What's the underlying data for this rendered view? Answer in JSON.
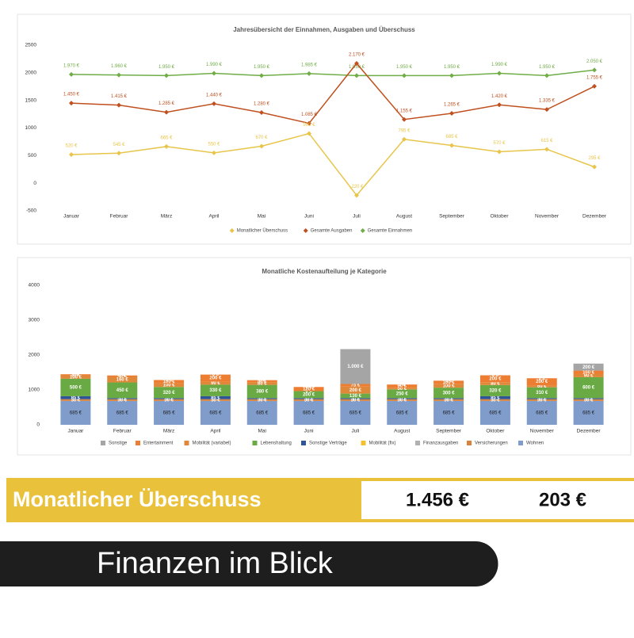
{
  "chart_data": [
    {
      "type": "line",
      "title": "Jahresübersicht der Einnahmen, Ausgaben und Überschuss",
      "categories": [
        "Januar",
        "Februar",
        "März",
        "April",
        "Mai",
        "Juni",
        "Juli",
        "August",
        "September",
        "Oktober",
        "November",
        "Dezember"
      ],
      "ylim": [
        -500,
        2500
      ],
      "yticks": [
        -500,
        0,
        500,
        1000,
        1500,
        2000,
        2500
      ],
      "legend": "bottom",
      "series": [
        {
          "name": "Gesamte Einnahmen",
          "color": "#70ad47",
          "values": [
            1970,
            1960,
            1950,
            1990,
            1950,
            1985,
            1950,
            1950,
            1950,
            1990,
            1950,
            2050
          ],
          "value_labels": [
            "1.970 €",
            "1.960 €",
            "1.950 €",
            "1.990 €",
            "1.950 €",
            "1.985 €",
            "1.950 €",
            "1.950 €",
            "1.950 €",
            "1.990 €",
            "1.950 €",
            "2.050 €"
          ]
        },
        {
          "name": "Gesamte Ausgaben",
          "color": "#c0501f",
          "values": [
            1450,
            1415,
            1285,
            1440,
            1280,
            1085,
            2170,
            1155,
            1265,
            1420,
            1335,
            1755
          ],
          "value_labels": [
            "1.450 €",
            "1.415 €",
            "1.285 €",
            "1.440 €",
            "1.280 €",
            "1.085 €",
            "2.170 €",
            "1.155 €",
            "1.265 €",
            "1.420 €",
            "1.335 €",
            "1.755 €"
          ]
        },
        {
          "name": "Monatlicher Überschuss",
          "color": "#e8c54a",
          "values": [
            520,
            545,
            665,
            550,
            670,
            900,
            -220,
            795,
            685,
            570,
            615,
            295
          ],
          "value_labels": [
            "520 €",
            "545 €",
            "665 €",
            "550 €",
            "670 €",
            "900 €",
            "-220 €",
            "795 €",
            "685 €",
            "570 €",
            "615 €",
            "295 €"
          ]
        }
      ]
    },
    {
      "type": "stacked-bar",
      "title": "Monatliche Kostenaufteilung je Kategorie",
      "categories": [
        "Januar",
        "Februar",
        "März",
        "April",
        "Mai",
        "Juni",
        "Juli",
        "August",
        "September",
        "Oktober",
        "November",
        "Dezember"
      ],
      "ylim": [
        0,
        4000
      ],
      "yticks": [
        0,
        1000,
        2000,
        3000,
        4000
      ],
      "legend": "bottom",
      "series": [
        {
          "name": "Wohnen",
          "color": "#7f9ccb",
          "values": [
            685,
            685,
            685,
            685,
            685,
            685,
            685,
            685,
            685,
            685,
            685,
            685
          ],
          "value_labels": [
            "685 €",
            "685 €",
            "685 €",
            "685 €",
            "685 €",
            "685 €",
            "685 €",
            "685 €",
            "685 €",
            "685 €",
            "685 €",
            "685 €"
          ]
        },
        {
          "name": "Versicherungen",
          "color": "#d9823b",
          "values": [
            50,
            50,
            50,
            50,
            50,
            50,
            50,
            50,
            50,
            50,
            50,
            50
          ],
          "value_labels": [
            "50 €",
            "50 €",
            "50 €",
            "50 €",
            "50 €",
            "50 €",
            "50 €",
            "50 €",
            "50 €",
            "50 €",
            "50 €",
            "50 €"
          ]
        },
        {
          "name": "Finanzausgaben",
          "color": "#b0b0b0",
          "values": [
            0,
            0,
            0,
            0,
            0,
            0,
            0,
            0,
            0,
            0,
            0,
            0
          ],
          "value_labels": [
            "0 €",
            "0 €",
            "0 €",
            "0 €",
            "0 €",
            "0 €",
            "0 €",
            "0 €",
            "0 €",
            "0 €",
            "0 €",
            "0 €"
          ]
        },
        {
          "name": "Mobilität (fix)",
          "color": "#f2c12e",
          "values": [
            0,
            0,
            0,
            0,
            0,
            0,
            0,
            0,
            0,
            0,
            0,
            0
          ],
          "value_labels": [
            "0 €",
            "0 €",
            "0 €",
            "0 €",
            "0 €",
            "0 €",
            "0 €",
            "0 €",
            "0 €",
            "0 €",
            "0 €",
            "0 €"
          ]
        },
        {
          "name": "Sonstige Verträge",
          "color": "#2f5597",
          "values": [
            85,
            30,
            30,
            85,
            30,
            30,
            30,
            30,
            30,
            85,
            30,
            30
          ],
          "value_labels": [
            "85 €",
            "30 €",
            "30 €",
            "85 €",
            "30 €",
            "30 €",
            "30 €",
            "30 €",
            "30 €",
            "85 €",
            "30 €",
            "30 €"
          ]
        },
        {
          "name": "Lebenshaltung",
          "color": "#6aaa44",
          "values": [
            500,
            450,
            320,
            330,
            380,
            200,
            130,
            250,
            300,
            320,
            310,
            600
          ],
          "value_labels": [
            "500 €",
            "450 €",
            "320 €",
            "330 €",
            "380 €",
            "200 €",
            "130 €",
            "250 €",
            "300 €",
            "320 €",
            "310 €",
            "600 €"
          ]
        },
        {
          "name": "Mobilität (variabel)",
          "color": "#e0883a",
          "values": [
            100,
            160,
            100,
            90,
            80,
            0,
            200,
            50,
            100,
            80,
            60,
            90
          ],
          "value_labels": [
            "100 €",
            "160 €",
            "100 €",
            "90 €",
            "80 €",
            "0 €",
            "200 €",
            "50 €",
            "100 €",
            "80 €",
            "60 €",
            "90 €"
          ]
        },
        {
          "name": "Entertainment",
          "color": "#ed7d31",
          "values": [
            30,
            40,
            100,
            200,
            55,
            120,
            75,
            90,
            100,
            200,
            200,
            100
          ],
          "value_labels": [
            "30 €",
            "40 €",
            "100 €",
            "200 €",
            "55 €",
            "120 €",
            "75 €",
            "90 €",
            "100 €",
            "200 €",
            "200 €",
            "100 €"
          ]
        },
        {
          "name": "Sonstige",
          "color": "#a5a5a5",
          "values": [
            0,
            0,
            0,
            0,
            0,
            0,
            1000,
            0,
            0,
            0,
            0,
            200
          ],
          "value_labels": [
            "0 €",
            "0 €",
            "0 €",
            "0 €",
            "0 €",
            "0 €",
            "1.000 €",
            "0 €",
            "0 €",
            "0 €",
            "0 €",
            "200 €"
          ]
        }
      ]
    }
  ],
  "summary": {
    "title": "Monatlicher Überschuss",
    "amounts": [
      "1.456 €",
      "203 €"
    ]
  },
  "footer": {
    "title": "Finanzen im Blick"
  }
}
